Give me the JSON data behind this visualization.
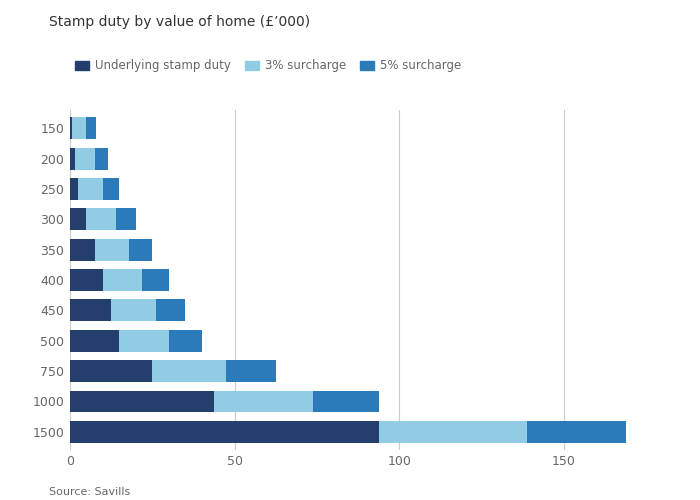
{
  "title": "Stamp duty by value of home (£’000)",
  "source": "Source: Savills",
  "categories": [
    "150",
    "200",
    "250",
    "300",
    "350",
    "400",
    "450",
    "500",
    "750",
    "1000",
    "1500"
  ],
  "underlying": [
    0.5,
    1.5,
    2.5,
    5.0,
    7.5,
    10.0,
    12.5,
    15.0,
    25.0,
    43.75,
    93.75
  ],
  "surcharge_3pct": [
    4.5,
    6.0,
    7.5,
    9.0,
    10.5,
    12.0,
    13.5,
    15.0,
    22.5,
    30.0,
    45.0
  ],
  "surcharge_5pct": [
    3.0,
    4.0,
    5.0,
    6.0,
    7.0,
    8.0,
    9.0,
    10.0,
    15.0,
    20.0,
    30.0
  ],
  "color_underlying": "#243f6e",
  "color_3pct": "#91cce4",
  "color_5pct": "#2b7bba",
  "legend_labels": [
    "Underlying stamp duty",
    "3% surcharge",
    "5% surcharge"
  ],
  "xlim": [
    0,
    185
  ],
  "xticks": [
    0,
    50,
    100,
    150
  ],
  "background_color": "#ffffff",
  "plot_bg_color": "#ffffff",
  "text_color": "#666666",
  "grid_color": "#cccccc",
  "title_color": "#333333",
  "bar_height": 0.72
}
